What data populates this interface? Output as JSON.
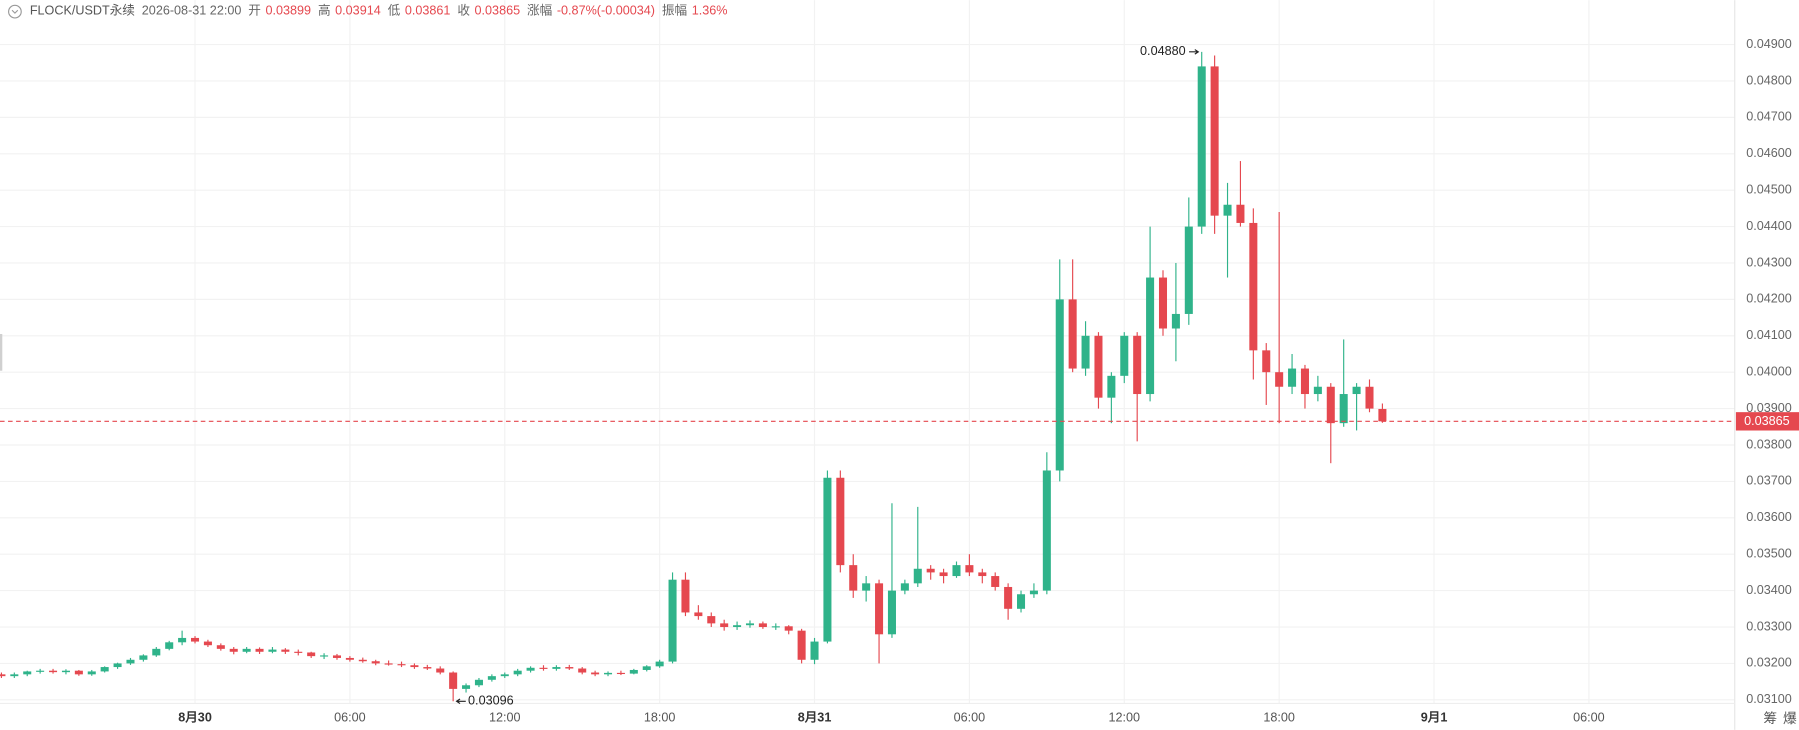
{
  "header": {
    "symbol": "FLOCK/USDT永续",
    "time": "2026-08-31 22:00",
    "open_label": "开",
    "open": "0.03899",
    "high_label": "高",
    "high": "0.03914",
    "low_label": "低",
    "low": "0.03861",
    "close_label": "收",
    "close": "0.03865",
    "change_label": "涨幅",
    "change": "-0.87%(-0.00034)",
    "amplitude_label": "振幅",
    "amplitude": "1.36%"
  },
  "side_buttons": [
    "筹",
    "爆"
  ],
  "chart_data": {
    "type": "candlestick",
    "up_color": "#2fb38a",
    "down_color": "#e5484f",
    "grid": true,
    "ylim": [
      0.0309,
      0.05022
    ],
    "xlim": [
      -0.11,
      134.3
    ],
    "yticks": [
      {
        "value": 0.031,
        "label": "0.03100"
      },
      {
        "value": 0.032,
        "label": "0.03200"
      },
      {
        "value": 0.033,
        "label": "0.03300"
      },
      {
        "value": 0.034,
        "label": "0.03400"
      },
      {
        "value": 0.035,
        "label": "0.03500"
      },
      {
        "value": 0.036,
        "label": "0.03600"
      },
      {
        "value": 0.037,
        "label": "0.03700"
      },
      {
        "value": 0.038,
        "label": "0.03800"
      },
      {
        "value": 0.039,
        "label": "0.03900"
      },
      {
        "value": 0.04,
        "label": "0.04000"
      },
      {
        "value": 0.041,
        "label": "0.04100"
      },
      {
        "value": 0.042,
        "label": "0.04200"
      },
      {
        "value": 0.043,
        "label": "0.04300"
      },
      {
        "value": 0.044,
        "label": "0.04400"
      },
      {
        "value": 0.045,
        "label": "0.04500"
      },
      {
        "value": 0.046,
        "label": "0.04600"
      },
      {
        "value": 0.047,
        "label": "0.04700"
      },
      {
        "value": 0.048,
        "label": "0.04800"
      },
      {
        "value": 0.049,
        "label": "0.04900"
      }
    ],
    "xticks": [
      {
        "value": 15,
        "label": "8月30"
      },
      {
        "value": 27,
        "label": "06:00"
      },
      {
        "value": 39,
        "label": "12:00"
      },
      {
        "value": 51,
        "label": "18:00"
      },
      {
        "value": 63,
        "label": "8月31"
      },
      {
        "value": 75,
        "label": "06:00"
      },
      {
        "value": 87,
        "label": "12:00"
      },
      {
        "value": 99,
        "label": "18:00"
      },
      {
        "value": 111,
        "label": "9月1"
      },
      {
        "value": 123,
        "label": "06:00"
      }
    ],
    "last_price": 0.03865,
    "max_annotation": {
      "value": 0.0488,
      "label": "0.04880"
    },
    "min_annotation": {
      "value": 0.03096,
      "label": "0.03096"
    },
    "candles": [
      [
        0.0317,
        0.03175,
        0.0316,
        0.03165
      ],
      [
        0.03165,
        0.03175,
        0.0316,
        0.0317
      ],
      [
        0.0317,
        0.0318,
        0.03165,
        0.03178
      ],
      [
        0.03178,
        0.03185,
        0.03172,
        0.0318
      ],
      [
        0.0318,
        0.03185,
        0.03172,
        0.03176
      ],
      [
        0.03176,
        0.03184,
        0.0317,
        0.0318
      ],
      [
        0.0318,
        0.03182,
        0.03166,
        0.0317
      ],
      [
        0.0317,
        0.03182,
        0.03166,
        0.03178
      ],
      [
        0.03178,
        0.03192,
        0.03175,
        0.0319
      ],
      [
        0.0319,
        0.03202,
        0.03185,
        0.032
      ],
      [
        0.032,
        0.03215,
        0.03196,
        0.0321
      ],
      [
        0.0321,
        0.03225,
        0.03205,
        0.03222
      ],
      [
        0.03222,
        0.03245,
        0.03218,
        0.0324
      ],
      [
        0.0324,
        0.03262,
        0.03236,
        0.03258
      ],
      [
        0.03258,
        0.0329,
        0.0325,
        0.0327
      ],
      [
        0.0327,
        0.03275,
        0.03255,
        0.0326
      ],
      [
        0.0326,
        0.03265,
        0.03245,
        0.0325
      ],
      [
        0.0325,
        0.03255,
        0.03235,
        0.0324
      ],
      [
        0.0324,
        0.03245,
        0.03225,
        0.03232
      ],
      [
        0.03232,
        0.03245,
        0.03228,
        0.0324
      ],
      [
        0.0324,
        0.03244,
        0.03226,
        0.03232
      ],
      [
        0.03232,
        0.03245,
        0.03228,
        0.03238
      ],
      [
        0.03238,
        0.03242,
        0.03226,
        0.03232
      ],
      [
        0.03232,
        0.03238,
        0.03222,
        0.0323
      ],
      [
        0.0323,
        0.03232,
        0.03215,
        0.0322
      ],
      [
        0.0322,
        0.03228,
        0.03212,
        0.03222
      ],
      [
        0.03222,
        0.03226,
        0.0321,
        0.03215
      ],
      [
        0.03215,
        0.0322,
        0.03205,
        0.0321
      ],
      [
        0.0321,
        0.03216,
        0.03202,
        0.03206
      ],
      [
        0.03206,
        0.0321,
        0.03195,
        0.032
      ],
      [
        0.032,
        0.03208,
        0.03194,
        0.03198
      ],
      [
        0.03198,
        0.03205,
        0.0319,
        0.03195
      ],
      [
        0.03195,
        0.032,
        0.03185,
        0.0319
      ],
      [
        0.0319,
        0.03196,
        0.03182,
        0.03186
      ],
      [
        0.03186,
        0.03192,
        0.0317,
        0.03175
      ],
      [
        0.03175,
        0.03178,
        0.03096,
        0.0313
      ],
      [
        0.0313,
        0.03145,
        0.0312,
        0.0314
      ],
      [
        0.0314,
        0.0316,
        0.03135,
        0.03155
      ],
      [
        0.03155,
        0.0317,
        0.0315,
        0.03165
      ],
      [
        0.03165,
        0.03175,
        0.0316,
        0.0317
      ],
      [
        0.0317,
        0.03185,
        0.03165,
        0.0318
      ],
      [
        0.0318,
        0.03192,
        0.03175,
        0.03188
      ],
      [
        0.03188,
        0.03195,
        0.0318,
        0.03185
      ],
      [
        0.03185,
        0.03195,
        0.0318,
        0.0319
      ],
      [
        0.0319,
        0.03196,
        0.03182,
        0.03186
      ],
      [
        0.03186,
        0.0319,
        0.0317,
        0.03175
      ],
      [
        0.03175,
        0.0318,
        0.03165,
        0.0317
      ],
      [
        0.0317,
        0.03178,
        0.03165,
        0.03174
      ],
      [
        0.03174,
        0.0318,
        0.03168,
        0.03172
      ],
      [
        0.03172,
        0.03185,
        0.0317,
        0.03182
      ],
      [
        0.03182,
        0.03195,
        0.03178,
        0.03192
      ],
      [
        0.03192,
        0.0321,
        0.03188,
        0.03205
      ],
      [
        0.03205,
        0.0345,
        0.032,
        0.0343
      ],
      [
        0.0343,
        0.0345,
        0.0333,
        0.0334
      ],
      [
        0.0334,
        0.0336,
        0.0332,
        0.0333
      ],
      [
        0.0333,
        0.0334,
        0.033,
        0.0331
      ],
      [
        0.0331,
        0.0332,
        0.0329,
        0.033
      ],
      [
        0.033,
        0.03315,
        0.03292,
        0.03305
      ],
      [
        0.03305,
        0.03318,
        0.03298,
        0.0331
      ],
      [
        0.0331,
        0.03315,
        0.03295,
        0.033
      ],
      [
        0.033,
        0.0331,
        0.03292,
        0.03302
      ],
      [
        0.03302,
        0.03305,
        0.0328,
        0.0329
      ],
      [
        0.0329,
        0.03295,
        0.032,
        0.0321
      ],
      [
        0.0321,
        0.0327,
        0.03198,
        0.0326
      ],
      [
        0.0326,
        0.0373,
        0.03255,
        0.0371
      ],
      [
        0.0371,
        0.0373,
        0.0345,
        0.0347
      ],
      [
        0.0347,
        0.035,
        0.0338,
        0.034
      ],
      [
        0.034,
        0.0344,
        0.0337,
        0.0342
      ],
      [
        0.0342,
        0.0343,
        0.032,
        0.0328
      ],
      [
        0.0328,
        0.0364,
        0.0327,
        0.034
      ],
      [
        0.034,
        0.0343,
        0.0339,
        0.0342
      ],
      [
        0.0342,
        0.0363,
        0.0341,
        0.0346
      ],
      [
        0.0346,
        0.0347,
        0.0343,
        0.0345
      ],
      [
        0.0345,
        0.0346,
        0.0342,
        0.0344
      ],
      [
        0.0344,
        0.0348,
        0.03435,
        0.0347
      ],
      [
        0.0347,
        0.035,
        0.0344,
        0.0345
      ],
      [
        0.0345,
        0.0346,
        0.0342,
        0.0344
      ],
      [
        0.0344,
        0.0345,
        0.034,
        0.0341
      ],
      [
        0.0341,
        0.0342,
        0.0332,
        0.0335
      ],
      [
        0.0335,
        0.034,
        0.0334,
        0.0339
      ],
      [
        0.0339,
        0.0342,
        0.0338,
        0.034
      ],
      [
        0.034,
        0.0378,
        0.0339,
        0.0373
      ],
      [
        0.0373,
        0.0431,
        0.037,
        0.042
      ],
      [
        0.042,
        0.0431,
        0.04,
        0.0401
      ],
      [
        0.0401,
        0.0414,
        0.0399,
        0.041
      ],
      [
        0.041,
        0.0411,
        0.039,
        0.0393
      ],
      [
        0.0393,
        0.04,
        0.0386,
        0.0399
      ],
      [
        0.0399,
        0.0411,
        0.0397,
        0.041
      ],
      [
        0.041,
        0.0411,
        0.0381,
        0.0394
      ],
      [
        0.0394,
        0.044,
        0.0392,
        0.0426
      ],
      [
        0.0426,
        0.0428,
        0.041,
        0.0412
      ],
      [
        0.0412,
        0.043,
        0.0403,
        0.0416
      ],
      [
        0.0416,
        0.0448,
        0.0413,
        0.044
      ],
      [
        0.044,
        0.0488,
        0.0438,
        0.0484
      ],
      [
        0.0484,
        0.0487,
        0.0438,
        0.0443
      ],
      [
        0.0443,
        0.0452,
        0.0426,
        0.0446
      ],
      [
        0.0446,
        0.0458,
        0.044,
        0.0441
      ],
      [
        0.0441,
        0.0445,
        0.0398,
        0.0406
      ],
      [
        0.0406,
        0.0408,
        0.0391,
        0.04
      ],
      [
        0.04,
        0.0444,
        0.0386,
        0.0396
      ],
      [
        0.0396,
        0.0405,
        0.0394,
        0.0401
      ],
      [
        0.0401,
        0.0402,
        0.039,
        0.0394
      ],
      [
        0.0394,
        0.0399,
        0.0392,
        0.0396
      ],
      [
        0.0396,
        0.0397,
        0.0375,
        0.0386
      ],
      [
        0.0386,
        0.0409,
        0.0385,
        0.0394
      ],
      [
        0.0394,
        0.0397,
        0.0384,
        0.0396
      ],
      [
        0.0396,
        0.0398,
        0.0389,
        0.039
      ],
      [
        0.03899,
        0.03914,
        0.03861,
        0.03865
      ]
    ]
  }
}
